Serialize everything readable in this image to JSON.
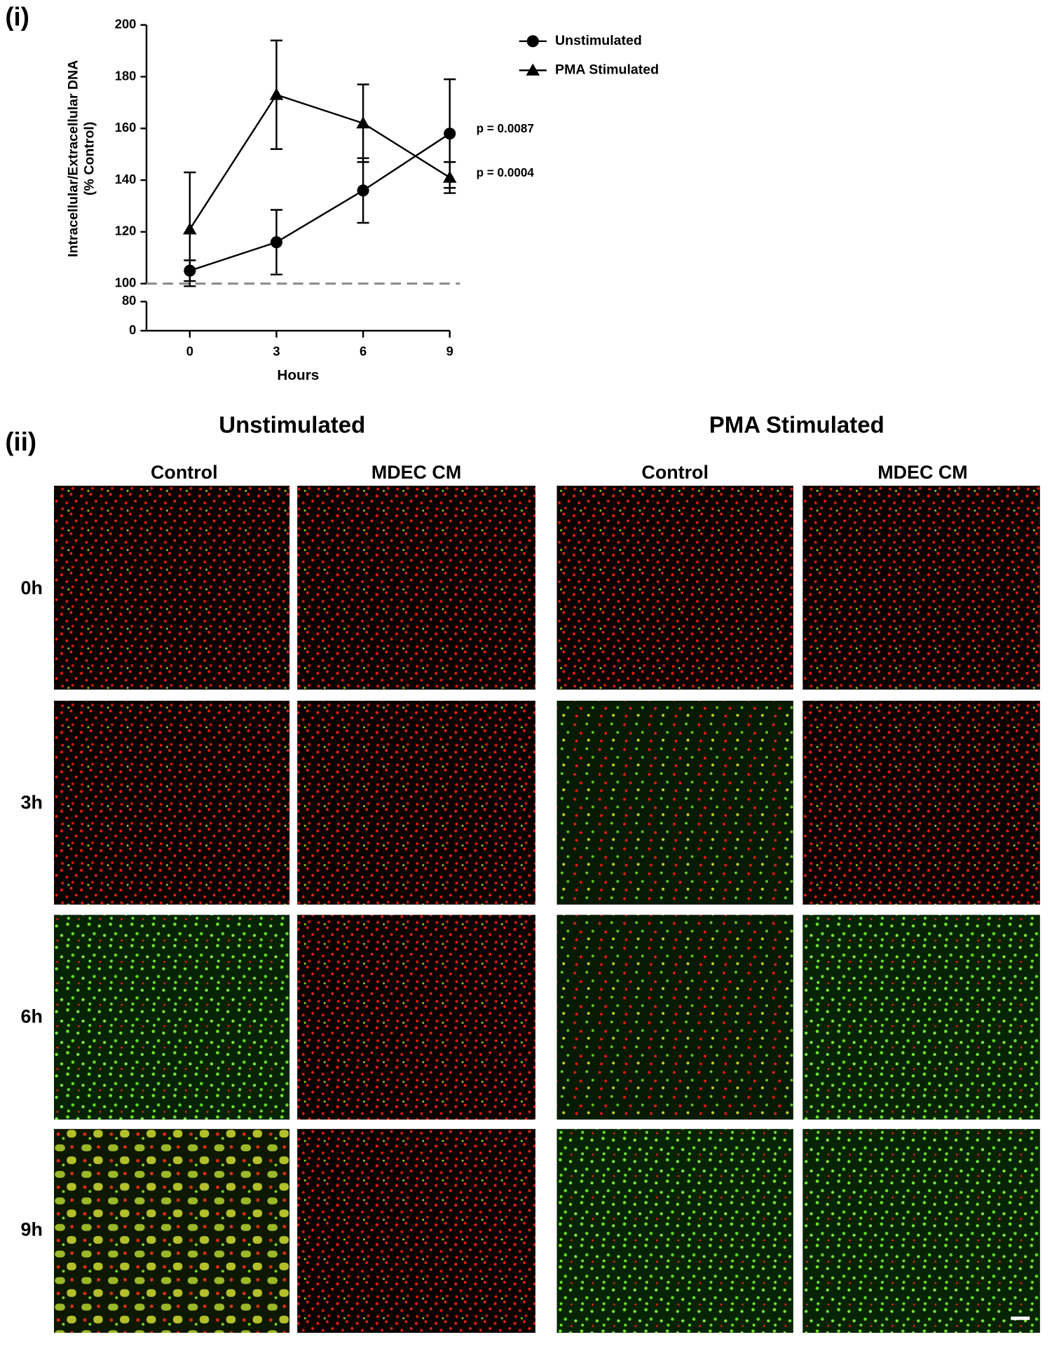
{
  "panel_labels": [
    "(i)",
    "(ii)"
  ],
  "chart_data": {
    "type": "line",
    "y_label": [
      "Intracellular/Extracellular DNA",
      "(% Control)"
    ],
    "x_label": "Hours",
    "x": [
      0,
      3,
      6,
      9
    ],
    "xlim": [
      -1.5,
      9
    ],
    "xticks": [
      0,
      3,
      6,
      9
    ],
    "ylim": [
      100,
      200
    ],
    "yticks": [
      100,
      120,
      140,
      160,
      180,
      200
    ],
    "ylim_lower": [
      0,
      80
    ],
    "yticks_lower": [
      0,
      80
    ],
    "reference_line": 100,
    "series": [
      {
        "name": "Unstimulated",
        "marker": "circle",
        "color": "#000000",
        "values": [
          105,
          116,
          136,
          158
        ],
        "errors": [
          4,
          12.5,
          12.5,
          21
        ]
      },
      {
        "name": "PMA Stimulated",
        "marker": "triangle",
        "color": "#000000",
        "values": [
          121,
          173,
          162,
          141
        ],
        "errors": [
          22,
          21,
          15,
          6
        ]
      }
    ],
    "annotations": [
      "p = 0.0087",
      "p = 0.0004"
    ],
    "legend": "top-right",
    "grid": false
  },
  "micrographs": {
    "groups": [
      "Unstimulated",
      "PMA Stimulated"
    ],
    "columns": [
      "Control",
      "MDEC CM",
      "Control",
      "MDEC CM"
    ],
    "rows": [
      "0h",
      "3h",
      "6h",
      "9h"
    ]
  }
}
